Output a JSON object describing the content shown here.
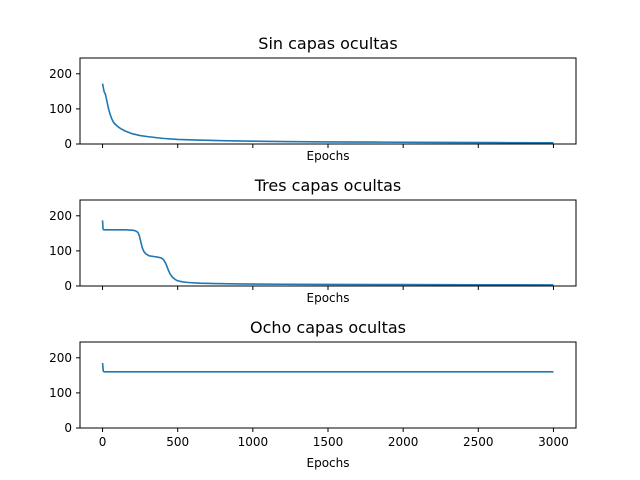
{
  "chart_data": [
    {
      "type": "line",
      "title": "Sin capas ocultas",
      "xlabel": "Epochs",
      "ylabel": "",
      "xlim": [
        -150,
        3150
      ],
      "ylim": [
        0,
        245
      ],
      "xticks": [
        0,
        500,
        1000,
        1500,
        2000,
        2500,
        3000
      ],
      "xtick_labels": [
        "",
        "",
        "",
        "",
        "",
        "",
        ""
      ],
      "yticks": [
        0,
        100,
        200
      ],
      "ytick_labels": [
        "0",
        "100",
        "200"
      ],
      "grid": false,
      "color": "#1f77b4",
      "series": [
        {
          "x": [
            0,
            10,
            20,
            30,
            40,
            50,
            60,
            70,
            80,
            100,
            120,
            150,
            200,
            250,
            300,
            400,
            500,
            600,
            800,
            1000,
            1200,
            1500,
            1800,
            2000,
            2300,
            2600,
            3000
          ],
          "y": [
            172,
            150,
            140,
            120,
            100,
            85,
            73,
            64,
            58,
            50,
            44,
            37,
            29,
            24,
            21,
            16,
            13,
            11.5,
            9.5,
            8,
            7,
            6,
            5.5,
            5,
            4.5,
            4,
            3.5
          ]
        }
      ]
    },
    {
      "type": "line",
      "title": "Tres capas ocultas",
      "xlabel": "Epochs",
      "ylabel": "",
      "xlim": [
        -150,
        3150
      ],
      "ylim": [
        0,
        245
      ],
      "xticks": [
        0,
        500,
        1000,
        1500,
        2000,
        2500,
        3000
      ],
      "xtick_labels": [
        "",
        "",
        "",
        "",
        "",
        "",
        ""
      ],
      "yticks": [
        0,
        100,
        200
      ],
      "ytick_labels": [
        "0",
        "100",
        "200"
      ],
      "grid": false,
      "color": "#1f77b4",
      "series": [
        {
          "x": [
            0,
            3,
            8,
            50,
            100,
            150,
            200,
            220,
            235,
            245,
            255,
            265,
            275,
            290,
            310,
            340,
            370,
            390,
            405,
            420,
            430,
            440,
            450,
            460,
            470,
            485,
            500,
            530,
            570,
            650,
            750,
            900,
            1000,
            1200,
            1500,
            2000,
            2500,
            3000
          ],
          "y": [
            187,
            163,
            160,
            160,
            160,
            160,
            159,
            157,
            153,
            143,
            125,
            108,
            98,
            91,
            86,
            84,
            82,
            80,
            75,
            65,
            54,
            43,
            34,
            28,
            23,
            18,
            15,
            12,
            10,
            8,
            7,
            6,
            5.5,
            5,
            4.5,
            4,
            3.5,
            3
          ]
        }
      ]
    },
    {
      "type": "line",
      "title": "Ocho capas ocultas",
      "xlabel": "Epochs",
      "ylabel": "",
      "xlim": [
        -150,
        3150
      ],
      "ylim": [
        0,
        245
      ],
      "xticks": [
        0,
        500,
        1000,
        1500,
        2000,
        2500,
        3000
      ],
      "xtick_labels": [
        "0",
        "500",
        "1000",
        "1500",
        "2000",
        "2500",
        "3000"
      ],
      "yticks": [
        0,
        100,
        200
      ],
      "ytick_labels": [
        "0",
        "100",
        "200"
      ],
      "grid": false,
      "color": "#1f77b4",
      "series": [
        {
          "x": [
            0,
            5,
            10,
            50,
            100,
            500,
            1000,
            1500,
            2000,
            2500,
            3000
          ],
          "y": [
            185,
            162,
            160,
            160,
            160,
            160,
            160,
            160,
            160,
            160,
            160
          ]
        }
      ]
    }
  ]
}
